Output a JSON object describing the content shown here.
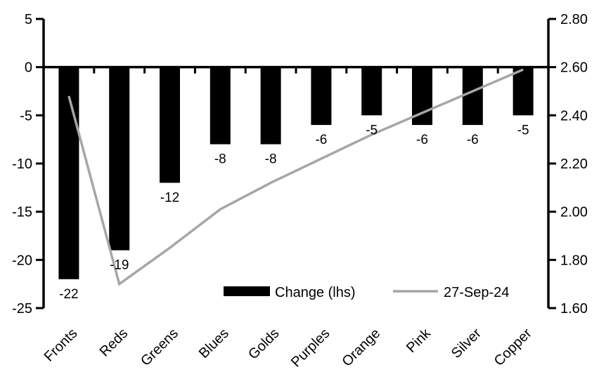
{
  "chart_data": {
    "type": "bar",
    "subtype": "combo-bar-line-dual-axis",
    "title": "",
    "categories": [
      "Fronts",
      "Reds",
      "Greens",
      "Blues",
      "Golds",
      "Purples",
      "Orange",
      "Pink",
      "Silver",
      "Copper"
    ],
    "series": [
      {
        "name": "Change (lhs)",
        "type": "bar",
        "axis": "left",
        "color": "#000000",
        "values": [
          -22,
          -19,
          -12,
          -8,
          -8,
          -6,
          -5,
          -6,
          -6,
          -5
        ],
        "data_labels": [
          "-22",
          "-19",
          "-12",
          "-8",
          "-8",
          "-6",
          "-5",
          "-6",
          "-6",
          "-5"
        ]
      },
      {
        "name": "27-Sep-24",
        "type": "line",
        "axis": "right",
        "color": "#a6a6a6",
        "values": [
          2.48,
          1.7,
          1.85,
          2.01,
          2.12,
          2.22,
          2.32,
          2.41,
          2.5,
          2.59
        ]
      }
    ],
    "left_axis": {
      "min": -25,
      "max": 5,
      "step": 5,
      "tick_labels": [
        "5",
        "0",
        "-5",
        "-10",
        "-15",
        "-20",
        "-25"
      ]
    },
    "right_axis": {
      "min": 1.6,
      "max": 2.8,
      "step": 0.2,
      "tick_labels": [
        "2.80",
        "2.60",
        "2.40",
        "2.20",
        "2.00",
        "1.80",
        "1.60"
      ]
    },
    "xlabel": "",
    "ylabel": "",
    "grid": false,
    "legend": {
      "position": "bottom-inside",
      "entries": [
        {
          "label": "Change (lhs)",
          "swatch": "bar",
          "color": "#000000"
        },
        {
          "label": "27-Sep-24",
          "swatch": "line",
          "color": "#a6a6a6"
        }
      ]
    },
    "colors": {
      "bar": "#000000",
      "line": "#a6a6a6",
      "axis": "#000000",
      "background": "#ffffff"
    }
  }
}
